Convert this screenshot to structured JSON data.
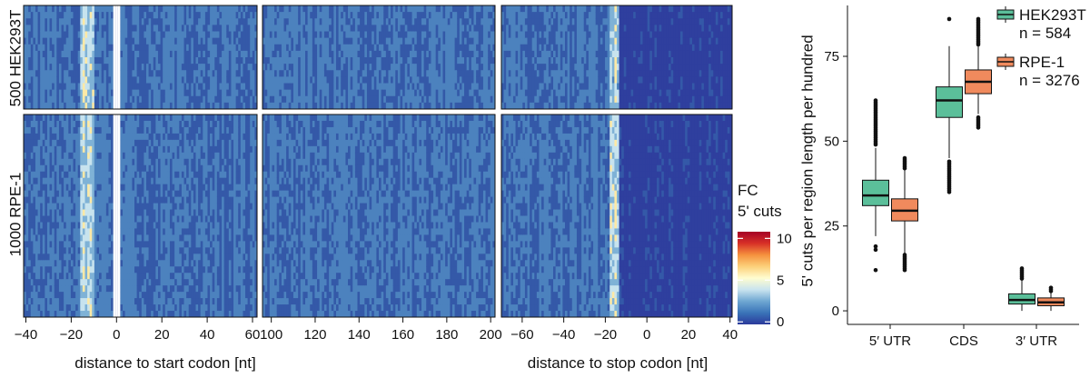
{
  "heatmap": {
    "type": "heatmap",
    "row_groups": [
      {
        "label": "500 HEK293T"
      },
      {
        "label": "1000 RPE-1"
      }
    ],
    "panels": [
      {
        "name": "start",
        "ticks": [
          -40,
          -20,
          0,
          20,
          40,
          60
        ],
        "xrange": [
          -41,
          62
        ],
        "xlabel": "distance to start codon [nt]"
      },
      {
        "name": "middle",
        "ticks": [
          100,
          120,
          140,
          160,
          180,
          200
        ],
        "xrange": [
          96,
          202
        ],
        "xlabel": ""
      },
      {
        "name": "stop",
        "ticks": [
          -60,
          -40,
          -20,
          0,
          20,
          40
        ],
        "xrange": [
          -70,
          41
        ],
        "xlabel": "distance to stop codon [nt]"
      }
    ],
    "colorbar": {
      "title_line1": "FC",
      "title_line2": "5' cuts",
      "ticks": [
        0,
        5,
        10
      ],
      "range": [
        -0.3,
        10.8
      ],
      "colors": [
        "#2b3a9b",
        "#3a74b8",
        "#6fa7d2",
        "#c9e4ef",
        "#fffdd0",
        "#fcd07a",
        "#f5913e",
        "#d73027",
        "#a50026"
      ]
    }
  },
  "chart_data": {
    "type": "box",
    "categories": [
      "5′ UTR",
      "CDS",
      "3′ UTR"
    ],
    "ylabel": "5' cuts per region length per hundred",
    "ylim": [
      -4,
      90
    ],
    "yticks": [
      0,
      25,
      50,
      75
    ],
    "legend_position": "top-right",
    "series": [
      {
        "name": "HEK293T",
        "n_label": "n = 584",
        "color": "#5bbf9a",
        "boxes": [
          {
            "category": "5′ UTR",
            "q1": 31,
            "median": 34,
            "q3": 38.5,
            "whisker_low": 22,
            "whisker_high": 48,
            "outliers_low": [
              18,
              19,
              12
            ],
            "outliers_high_range": [
              49,
              62
            ]
          },
          {
            "category": "CDS",
            "q1": 57,
            "median": 62,
            "q3": 66,
            "whisker_low": 45,
            "whisker_high": 78,
            "outliers_low_range": [
              35,
              44
            ],
            "outliers_high": [
              86
            ]
          },
          {
            "category": "3′ UTR",
            "q1": 2,
            "median": 3.2,
            "q3": 5,
            "whisker_low": 0,
            "whisker_high": 9,
            "outliers_high_range": [
              9.5,
              12.5
            ]
          }
        ]
      },
      {
        "name": "RPE-1",
        "n_label": "n = 3276",
        "color": "#f08a5d",
        "boxes": [
          {
            "category": "5′ UTR",
            "q1": 26.5,
            "median": 29.5,
            "q3": 33,
            "whisker_low": 17,
            "whisker_high": 41.5,
            "outliers_low_range": [
              12,
              16.5
            ],
            "outliers_high_range": [
              42,
              45
            ]
          },
          {
            "category": "CDS",
            "q1": 64,
            "median": 67.5,
            "q3": 71,
            "whisker_low": 58,
            "whisker_high": 78,
            "outliers_low_range": [
              54,
              57
            ],
            "outliers_high_range": [
              78.5,
              86
            ]
          },
          {
            "category": "3′ UTR",
            "q1": 1.5,
            "median": 2.5,
            "q3": 3.8,
            "whisker_low": 0,
            "whisker_high": 5.5,
            "outliers_high_range": [
              5.8,
              7
            ]
          }
        ]
      }
    ]
  }
}
